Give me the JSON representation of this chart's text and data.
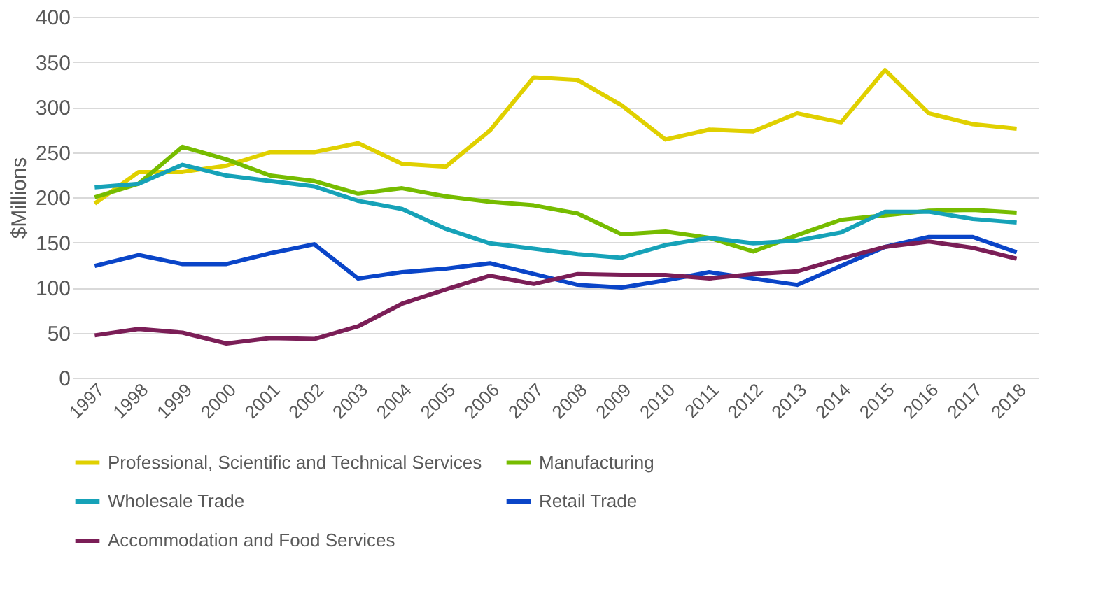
{
  "chart_data": {
    "type": "line",
    "ylabel": "$Millions",
    "categories": [
      "1997",
      "1998",
      "1999",
      "2000",
      "2001",
      "2002",
      "2003",
      "2004",
      "2005",
      "2006",
      "2007",
      "2008",
      "2009",
      "2010",
      "2011",
      "2012",
      "2013",
      "2014",
      "2015",
      "2016",
      "2017",
      "2018"
    ],
    "series": [
      {
        "name": "Professional, Scientific and Technical Services",
        "color": "#e0d000",
        "values": [
          193,
          228,
          228,
          235,
          250,
          250,
          260,
          237,
          234,
          274,
          333,
          330,
          302,
          264,
          275,
          273,
          293,
          283,
          341,
          293,
          281,
          276
        ]
      },
      {
        "name": "Manufacturing",
        "color": "#76bc00",
        "values": [
          200,
          215,
          256,
          242,
          224,
          218,
          204,
          210,
          201,
          195,
          191,
          182,
          159,
          162,
          155,
          140,
          158,
          175,
          180,
          185,
          186,
          183
        ]
      },
      {
        "name": "Wholesale Trade",
        "color": "#16a2b8",
        "values": [
          211,
          215,
          236,
          224,
          218,
          212,
          196,
          187,
          165,
          149,
          143,
          137,
          133,
          147,
          155,
          149,
          152,
          161,
          184,
          184,
          176,
          172
        ]
      },
      {
        "name": "Retail Trade",
        "color": "#0a45c8",
        "values": [
          124,
          136,
          126,
          126,
          138,
          148,
          110,
          117,
          121,
          127,
          115,
          103,
          100,
          108,
          117,
          110,
          103,
          124,
          145,
          156,
          156,
          139
        ]
      },
      {
        "name": "Accommodation and Food Services",
        "color": "#7b1e57",
        "values": [
          47,
          54,
          50,
          38,
          44,
          43,
          57,
          82,
          98,
          113,
          104,
          115,
          114,
          114,
          110,
          115,
          118,
          132,
          145,
          151,
          144,
          132
        ]
      }
    ],
    "ylim": [
      0,
      400
    ],
    "yticks": [
      0,
      50,
      100,
      150,
      200,
      250,
      300,
      350,
      400
    ],
    "grid": "y",
    "legend": "bottom",
    "marker": "none",
    "line_style": "solid"
  }
}
